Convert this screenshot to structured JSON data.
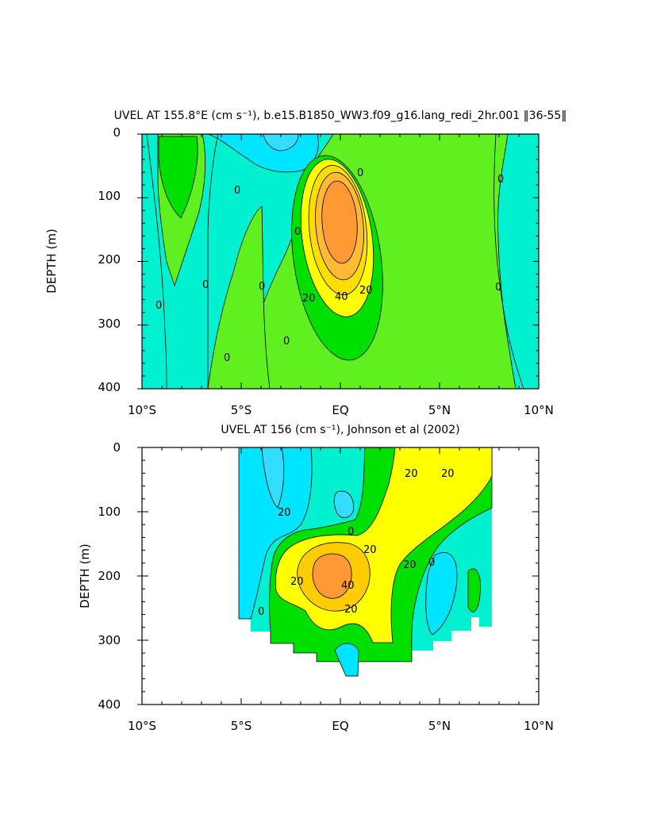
{
  "colors": {
    "background": "#ffffff",
    "levels": {
      "-10": "#00e5ff",
      "0": "#00f0d0",
      "10": "#60f020",
      "20": "#00e000",
      "30": "#ffff00",
      "40": "#ffcc00",
      "50": "#ff9933"
    },
    "contour": "#000000"
  },
  "chart_data": [
    {
      "type": "contour",
      "title": "UVEL AT 155.8°E (cm s⁻¹), b.e15.B1850_WW3.f09_g16.lang_redi_2hr.001 ‖36-55‖",
      "xlabel": "",
      "ylabel": "DEPTH (m)",
      "xlim": [
        -10,
        10
      ],
      "ylim": [
        400,
        0
      ],
      "x_ticks": [
        "10°S",
        "5°S",
        "EQ",
        "5°N",
        "10°N"
      ],
      "y_ticks": [
        "0",
        "100",
        "200",
        "300",
        "400"
      ],
      "contour_interval": 10,
      "contour_labels": [
        "0",
        "0",
        "0",
        "0",
        "0",
        "0",
        "0",
        "0",
        "0",
        "0",
        "20",
        "20",
        "40"
      ],
      "features": [
        {
          "name": "undercurrent core",
          "lat": 0,
          "depth": 200,
          "max": 50
        },
        {
          "name": "surface westward",
          "lat": -3,
          "depth": 0,
          "min": -10
        }
      ]
    },
    {
      "type": "contour",
      "title": "UVEL AT 156 (cm s⁻¹), Johnson et al (2002)",
      "xlabel": "",
      "ylabel": "DEPTH (m)",
      "xlim": [
        -10,
        10
      ],
      "ylim": [
        400,
        0
      ],
      "x_ticks": [
        "10°S",
        "5°S",
        "EQ",
        "5°N",
        "10°N"
      ],
      "y_ticks": [
        "0",
        "100",
        "200",
        "300",
        "400"
      ],
      "data_extent": {
        "lat": [
          -5,
          8
        ]
      },
      "contour_interval": 10,
      "contour_labels": [
        "20",
        "20",
        "20",
        "20",
        "20",
        "20",
        "20",
        "20",
        "40",
        "0",
        "0",
        "0"
      ],
      "features": [
        {
          "name": "undercurrent core",
          "lat": -0.5,
          "depth": 200,
          "max": 40
        }
      ]
    }
  ]
}
